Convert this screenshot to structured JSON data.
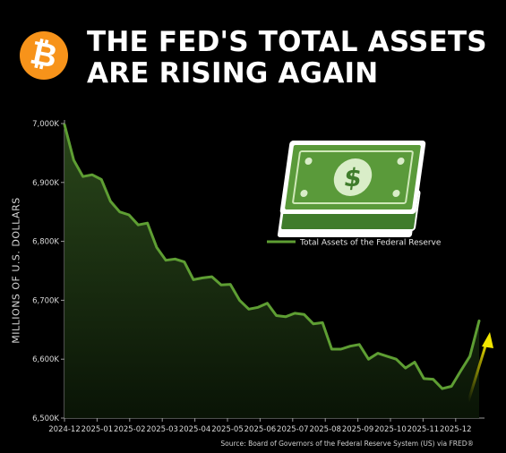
{
  "header": {
    "logo_glyph": "₿",
    "title_line1": "THE FED'S TOTAL ASSETS",
    "title_line2": "ARE RISING AGAIN",
    "logo_color": "#f7931a"
  },
  "icon": "dollar-bill-stack-icon",
  "source": "Source: Board of Governors of the Federal Reserve System (US) via FRED®",
  "chart_data": {
    "type": "line",
    "ylabel": "MILLIONS OF U.S. DOLLARS",
    "legend": "Total Assets of the Federal Reserve",
    "legend_position": "top-right",
    "ylim": [
      6500000,
      7000000
    ],
    "yticks": [
      6500000,
      6600000,
      6700000,
      6800000,
      6900000,
      7000000
    ],
    "ytick_labels": [
      "6,500K",
      "6,600K",
      "6,700K",
      "6,800K",
      "6,900K",
      "7,000K"
    ],
    "xticks": [
      "2024-12",
      "2025-01",
      "2025-02",
      "2025-03",
      "2025-04",
      "2025-05",
      "2025-06",
      "2025-07",
      "2025-08",
      "2025-09",
      "2025-10",
      "2025-11",
      "2025-12"
    ],
    "line_color": "#5e9e33",
    "arrow_color": "#f2e600",
    "grid": false,
    "values": [
      6998000,
      6938000,
      6910000,
      6913000,
      6905000,
      6868000,
      6850000,
      6845000,
      6828000,
      6831000,
      6790000,
      6768000,
      6770000,
      6765000,
      6735000,
      6738000,
      6740000,
      6726000,
      6727000,
      6700000,
      6685000,
      6688000,
      6695000,
      6674000,
      6672000,
      6678000,
      6676000,
      6660000,
      6662000,
      6617000,
      6617000,
      6622000,
      6625000,
      6600000,
      6610000,
      6605000,
      6600000,
      6585000,
      6595000,
      6567000,
      6566000,
      6550000,
      6554000,
      6580000,
      6605000,
      6665000
    ]
  }
}
